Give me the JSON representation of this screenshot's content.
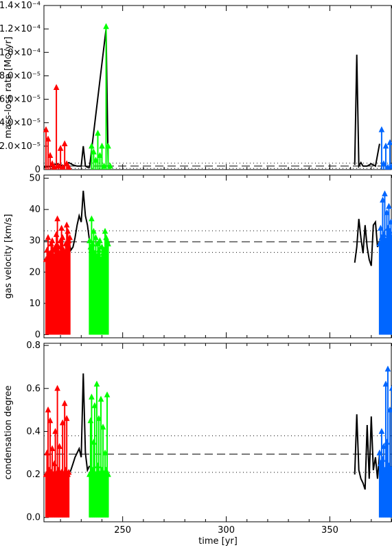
{
  "chart_data": [
    {
      "type": "scatter",
      "panel": "top",
      "ylabel": "mass-loss rate  [M⊙/yr]",
      "ylim": [
        0,
        0.00014
      ],
      "xlim": [
        212,
        380
      ],
      "yticks": [
        {
          "v": 0,
          "label": "0"
        },
        {
          "v": 2e-05,
          "label": "2.0×10⁻⁵"
        },
        {
          "v": 4e-05,
          "label": "4.0×10⁻⁵"
        },
        {
          "v": 6e-05,
          "label": "6.0×10⁻⁵"
        },
        {
          "v": 8e-05,
          "label": "8.0×10⁻⁵"
        },
        {
          "v": 0.0001,
          "label": "1.0×10⁻⁴"
        },
        {
          "v": 0.00012,
          "label": "1.2×10⁻⁴"
        },
        {
          "v": 0.00014,
          "label": "1.4×10⁻⁴"
        }
      ],
      "hlines": [
        {
          "y": 3e-06,
          "style": "dashed"
        },
        {
          "y": 1e-06,
          "style": "dotted"
        },
        {
          "y": 5.5e-06,
          "style": "dotted"
        }
      ],
      "series": [
        {
          "color": "#ff0000",
          "x": [
            213,
            214,
            215,
            216,
            217,
            218,
            219,
            220,
            221,
            222,
            223,
            224
          ],
          "y": [
            3.4e-05,
            2.6e-05,
            1.2e-05,
            5e-06,
            2e-06,
            7e-05,
            3e-06,
            1.8e-05,
            2e-06,
            2.2e-05,
            5e-06,
            2e-06
          ]
        },
        {
          "color": "#00ff00",
          "x": [
            235,
            236,
            237,
            238,
            239,
            240,
            241,
            242,
            243,
            244
          ],
          "y": [
            2e-05,
            1.5e-05,
            8e-06,
            3.1e-05,
            1.2e-05,
            2e-05,
            3e-06,
            0.000122,
            2e-05,
            3e-06
          ]
        },
        {
          "color": "#0066ff",
          "x": [
            375,
            376,
            377,
            378,
            379,
            380
          ],
          "y": [
            3.4e-05,
            5e-06,
            2e-05,
            2e-06,
            2.3e-05,
            3e-06
          ]
        }
      ],
      "black_x": [
        212,
        216,
        218,
        220,
        222,
        224,
        226,
        228,
        230,
        231,
        232,
        233,
        234,
        242,
        243,
        362,
        363,
        364,
        365,
        366,
        368,
        370,
        372,
        374
      ],
      "black_y": [
        2e-06,
        3e-06,
        5e-06,
        4e-06,
        3e-06,
        6e-06,
        4e-06,
        3e-06,
        3e-06,
        2e-05,
        3e-06,
        2e-06,
        2e-06,
        0.00012,
        2e-06,
        4e-06,
        9.8e-05,
        3e-06,
        6e-06,
        3e-06,
        3e-06,
        5e-06,
        3e-06,
        2.2e-05
      ]
    },
    {
      "type": "scatter",
      "panel": "middle",
      "ylabel": "gas velocity  [km/s]",
      "ylim": [
        -1,
        51
      ],
      "xlim": [
        212,
        380
      ],
      "yticks": [
        {
          "v": 0,
          "label": "0"
        },
        {
          "v": 10,
          "label": "10"
        },
        {
          "v": 20,
          "label": "20"
        },
        {
          "v": 30,
          "label": "30"
        },
        {
          "v": 40,
          "label": "40"
        },
        {
          "v": 50,
          "label": "50"
        }
      ],
      "hlines": [
        {
          "y": 29.7,
          "style": "dashed"
        },
        {
          "y": 26.3,
          "style": "dotted"
        },
        {
          "y": 33.2,
          "style": "dotted"
        }
      ],
      "series": [
        {
          "color": "#ff0000",
          "x": [
            213,
            213.5,
            214,
            214.5,
            215,
            215.5,
            216,
            216.5,
            217,
            217.5,
            218,
            218.5,
            219,
            219.5,
            220,
            220.5,
            221,
            221.5,
            222,
            222.5,
            223,
            223.5,
            224,
            224.5
          ],
          "y": [
            24,
            27,
            31,
            25,
            26,
            29,
            30,
            27,
            25,
            28,
            32,
            37,
            28,
            26,
            30,
            34,
            31,
            27,
            26,
            29,
            35,
            33,
            30,
            31
          ]
        },
        {
          "color": "#00ff00",
          "x": [
            234,
            234.5,
            235,
            235.5,
            236,
            236.5,
            237,
            237.5,
            238,
            238.5,
            239,
            239.5,
            240,
            240.5,
            241,
            241.5,
            242,
            242.5,
            243
          ],
          "y": [
            30,
            28,
            37,
            29,
            33,
            26,
            31,
            25,
            29,
            27,
            30,
            24,
            28,
            26,
            27,
            33,
            31,
            30,
            29
          ]
        },
        {
          "color": "#0066ff",
          "x": [
            374,
            374.5,
            375,
            375.5,
            376,
            376.5,
            377,
            377.5,
            378,
            378.5,
            379,
            379.5,
            380
          ],
          "y": [
            29,
            34,
            31,
            43,
            32,
            45,
            30,
            39,
            34,
            41,
            33,
            36,
            31
          ]
        }
      ],
      "black_x": [
        224,
        225,
        226,
        227,
        228,
        229,
        230,
        231,
        232,
        233,
        234,
        362,
        363,
        364,
        365,
        366,
        367,
        368,
        369,
        370,
        371,
        372,
        373,
        374
      ],
      "black_y": [
        30,
        27,
        28,
        31,
        35,
        38,
        36,
        46,
        38,
        35,
        30,
        23,
        28,
        37,
        31,
        26,
        35,
        28,
        24,
        22,
        35,
        36,
        28,
        30
      ]
    },
    {
      "type": "scatter",
      "panel": "bottom",
      "ylabel": "condensation degree",
      "xlabel": "time  [yr]",
      "ylim": [
        -0.02,
        0.81
      ],
      "xlim": [
        212,
        380
      ],
      "yticks": [
        {
          "v": 0.0,
          "label": "0.0"
        },
        {
          "v": 0.2,
          "label": "0.2"
        },
        {
          "v": 0.4,
          "label": "0.4"
        },
        {
          "v": 0.6,
          "label": "0.6"
        },
        {
          "v": 0.8,
          "label": "0.8"
        }
      ],
      "xticks": [
        {
          "v": 250,
          "label": "250"
        },
        {
          "v": 300,
          "label": "300"
        },
        {
          "v": 350,
          "label": "350"
        }
      ],
      "hlines": [
        {
          "y": 0.295,
          "style": "dashed"
        },
        {
          "y": 0.21,
          "style": "dotted"
        },
        {
          "y": 0.38,
          "style": "dotted"
        }
      ],
      "series": [
        {
          "color": "#ff0000",
          "x": [
            213,
            213.5,
            214,
            214.5,
            215,
            215.5,
            216,
            216.5,
            217,
            217.5,
            218,
            218.5,
            219,
            219.5,
            220,
            220.5,
            221,
            221.5,
            222,
            222.5,
            223,
            223.5,
            224
          ],
          "y": [
            0.2,
            0.3,
            0.5,
            0.22,
            0.45,
            0.21,
            0.32,
            0.2,
            0.25,
            0.4,
            0.2,
            0.6,
            0.22,
            0.33,
            0.2,
            0.21,
            0.44,
            0.2,
            0.53,
            0.22,
            0.46,
            0.2,
            0.21
          ]
        },
        {
          "color": "#00ff00",
          "x": [
            234,
            234.5,
            235,
            235.5,
            236,
            236.5,
            237,
            237.5,
            238,
            238.5,
            239,
            239.5,
            240,
            240.5,
            241,
            241.5,
            242,
            242.5,
            243
          ],
          "y": [
            0.2,
            0.45,
            0.56,
            0.22,
            0.35,
            0.52,
            0.2,
            0.62,
            0.24,
            0.46,
            0.2,
            0.55,
            0.22,
            0.42,
            0.2,
            0.3,
            0.22,
            0.57,
            0.2
          ]
        },
        {
          "color": "#0066ff",
          "x": [
            374,
            374.5,
            375,
            375.5,
            376,
            376.5,
            377,
            377.5,
            378,
            378.5,
            379,
            379.5,
            380
          ],
          "y": [
            0.3,
            0.25,
            0.4,
            0.27,
            0.33,
            0.22,
            0.62,
            0.35,
            0.69,
            0.24,
            0.5,
            0.22,
            0.6
          ]
        }
      ],
      "black_x": [
        224,
        225,
        226,
        227,
        228,
        229,
        230,
        231,
        232,
        233,
        234,
        362,
        363,
        364,
        365,
        366,
        367,
        368,
        369,
        370,
        371,
        372,
        373,
        374
      ],
      "black_y": [
        0.2,
        0.22,
        0.25,
        0.28,
        0.3,
        0.32,
        0.28,
        0.67,
        0.3,
        0.22,
        0.24,
        0.2,
        0.48,
        0.22,
        0.18,
        0.16,
        0.13,
        0.43,
        0.18,
        0.47,
        0.22,
        0.28,
        0.18,
        0.3
      ]
    }
  ]
}
